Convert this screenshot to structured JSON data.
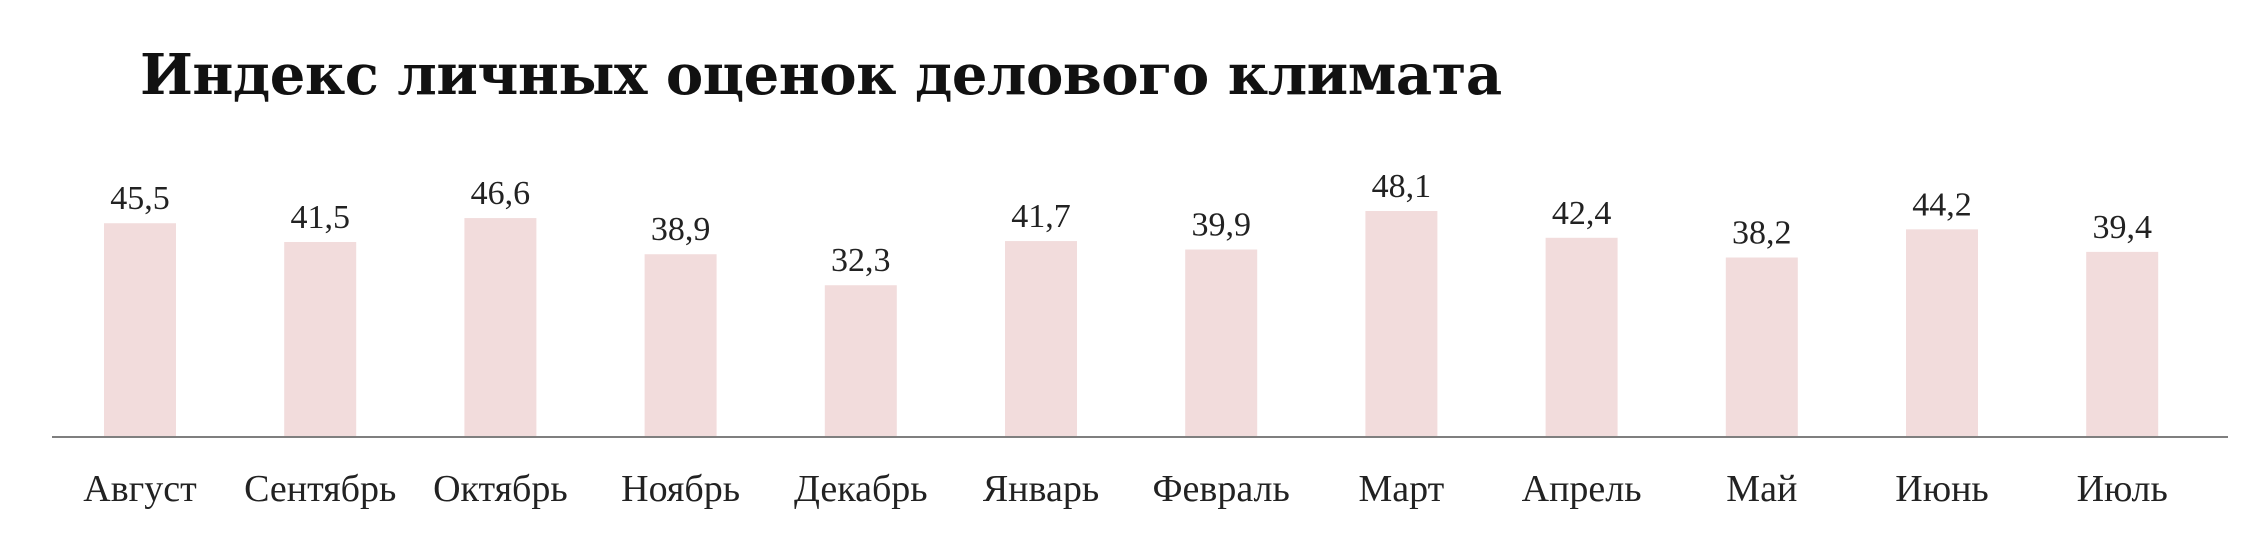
{
  "chart_data": {
    "type": "bar",
    "title": "Индекс личных оценок делового климата",
    "categories": [
      "Август",
      "Сентябрь",
      "Октябрь",
      "Ноябрь",
      "Декабрь",
      "Январь",
      "Февраль",
      "Март",
      "Апрель",
      "Май",
      "Июнь",
      "Июль"
    ],
    "values": [
      45.5,
      41.5,
      46.6,
      38.9,
      32.3,
      41.7,
      39.9,
      48.1,
      42.4,
      38.2,
      44.2,
      39.4
    ],
    "value_labels": [
      "45,5",
      "41,5",
      "46,6",
      "38,9",
      "32,3",
      "41,7",
      "39,9",
      "48,1",
      "42,4",
      "38,2",
      "44,2",
      "39,4"
    ],
    "ylim": [
      0,
      48.1
    ],
    "grid": false,
    "legend": "none",
    "bar_color": "#f2dcdc",
    "axis_color": "#7f7f7f"
  }
}
